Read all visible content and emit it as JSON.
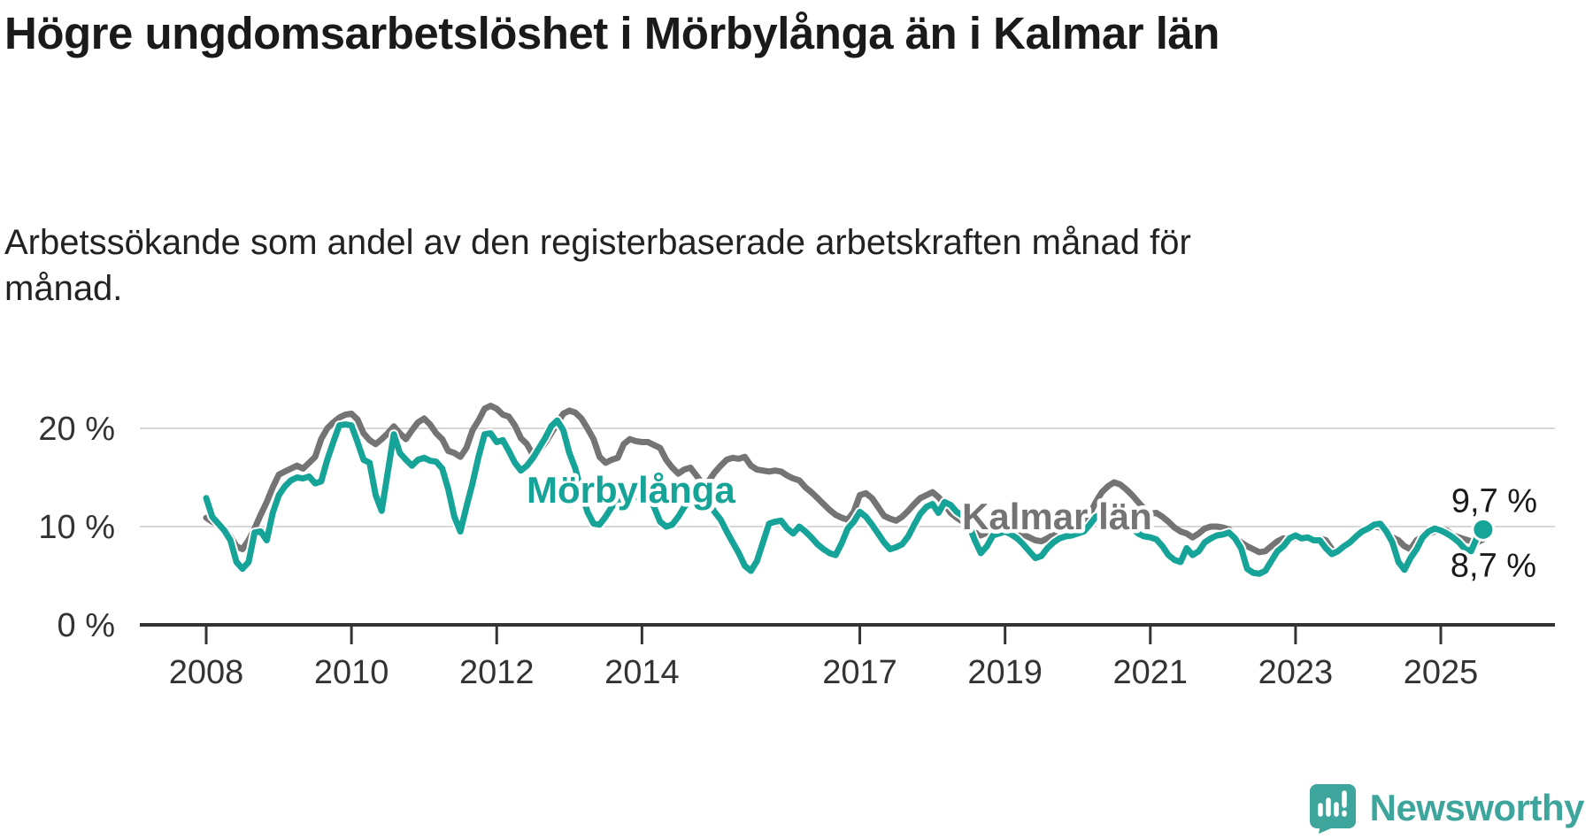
{
  "header": {
    "title": "Högre ungdomsarbetslöshet i Mörbylånga än i Kalmar län",
    "subtitle": "Arbetssökande som andel av den registerbaserade arbetskraften månad för månad."
  },
  "colors": {
    "morbylanga": "#16A398",
    "kalmar": "#747474",
    "axis": "#333333",
    "tick_text": "#333333",
    "grid": "#D8D8D8",
    "title_text": "#1A1A1A",
    "value_text": "#1A1A1A",
    "logo": "#3EA59D",
    "background": "#FFFFFF"
  },
  "chart_data": {
    "type": "line",
    "title": "Högre ungdomsarbetslöshet i Mörbylånga än i Kalmar län",
    "subtitle": "Arbetssökande som andel av den registerbaserade arbetskraften månad för månad.",
    "x_unit": "month",
    "x_start": "2008-01",
    "x_end": "2025-08",
    "grid": "horizontal",
    "legend": "inline-labels",
    "x_axis": {
      "ticks": [
        {
          "year": 2008,
          "label": "2008"
        },
        {
          "year": 2010,
          "label": "2010"
        },
        {
          "year": 2012,
          "label": "2012"
        },
        {
          "year": 2014,
          "label": "2014"
        },
        {
          "year": 2017,
          "label": "2017"
        },
        {
          "year": 2019,
          "label": "2019"
        },
        {
          "year": 2021,
          "label": "2021"
        },
        {
          "year": 2023,
          "label": "2023"
        },
        {
          "year": 2025,
          "label": "2025"
        }
      ]
    },
    "y_axis": {
      "unit": "%",
      "range": [
        0,
        23
      ],
      "ticks": [
        {
          "value": 20,
          "label": "20 %"
        },
        {
          "value": 10,
          "label": "10 %"
        },
        {
          "value": 0,
          "label": "0 %"
        }
      ]
    },
    "series": [
      {
        "id": "morbylanga",
        "name": "Mörbylånga",
        "color": "#16A398",
        "end_value": 9.7,
        "end_label": "9,7 %",
        "values": [
          12.9,
          11.0,
          10.3,
          9.6,
          8.6,
          6.4,
          5.7,
          6.4,
          9.4,
          9.5,
          8.6,
          11.4,
          13.2,
          14.1,
          14.7,
          15.0,
          14.9,
          15.1,
          14.4,
          14.6,
          16.8,
          18.6,
          20.3,
          20.4,
          20.3,
          18.6,
          16.8,
          16.5,
          13.2,
          11.6,
          15.5,
          19.4,
          17.5,
          16.8,
          16.2,
          16.8,
          17.0,
          16.7,
          16.6,
          15.9,
          13.8,
          11.0,
          9.5,
          12.0,
          14.4,
          17.1,
          19.4,
          19.5,
          18.6,
          18.8,
          17.7,
          16.5,
          15.7,
          16.2,
          17.0,
          18.0,
          19.0,
          20.2,
          20.8,
          19.8,
          17.5,
          15.9,
          13.5,
          11.5,
          10.3,
          10.2,
          11.0,
          12.0,
          12.6,
          12.8,
          12.9,
          13.0,
          13.3,
          13.5,
          12.0,
          10.5,
          10.0,
          10.2,
          11.0,
          12.0,
          12.8,
          13.3,
          13.6,
          12.5,
          11.5,
          10.7,
          9.5,
          8.4,
          7.3,
          6.0,
          5.5,
          6.5,
          8.4,
          10.3,
          10.5,
          10.6,
          9.8,
          9.3,
          10.0,
          9.5,
          8.9,
          8.2,
          7.7,
          7.3,
          7.1,
          8.3,
          9.8,
          10.5,
          11.5,
          11.0,
          10.2,
          9.3,
          8.4,
          7.7,
          7.9,
          8.2,
          9.0,
          10.2,
          11.3,
          12.0,
          12.3,
          11.4,
          12.5,
          12.2,
          11.5,
          11.1,
          10.2,
          8.6,
          7.3,
          8.0,
          9.1,
          9.3,
          9.5,
          9.2,
          8.8,
          8.2,
          7.5,
          6.8,
          7.0,
          7.8,
          8.4,
          8.8,
          9.0,
          9.1,
          9.3,
          9.5,
          10.2,
          11.0,
          11.3,
          11.0,
          10.8,
          10.5,
          10.2,
          9.8,
          9.3,
          9.0,
          8.9,
          8.7,
          8.0,
          7.1,
          6.6,
          6.4,
          7.8,
          7.1,
          7.5,
          8.4,
          8.8,
          9.1,
          9.2,
          9.4,
          8.8,
          7.8,
          5.7,
          5.3,
          5.2,
          5.5,
          6.5,
          7.5,
          8.0,
          8.8,
          9.1,
          8.8,
          8.9,
          8.6,
          8.6,
          7.8,
          7.2,
          7.5,
          8.0,
          8.4,
          9.0,
          9.5,
          9.8,
          10.2,
          10.3,
          9.5,
          8.4,
          6.4,
          5.6,
          6.8,
          7.7,
          8.9,
          9.5,
          9.8,
          9.6,
          9.3,
          8.9,
          8.4,
          7.7,
          7.5,
          8.9,
          9.7
        ]
      },
      {
        "id": "kalmar",
        "name": "Kalmar län",
        "color": "#747474",
        "end_value": 8.7,
        "end_label": "8,7 %",
        "values": [
          10.9,
          10.5,
          10.2,
          9.8,
          9.0,
          8.0,
          7.7,
          8.6,
          9.8,
          11.2,
          12.5,
          14.0,
          15.3,
          15.6,
          15.9,
          16.2,
          15.9,
          16.5,
          17.1,
          18.9,
          20.0,
          20.6,
          21.1,
          21.4,
          21.5,
          20.9,
          19.5,
          18.8,
          18.4,
          18.9,
          19.5,
          20.2,
          19.5,
          18.9,
          19.8,
          20.6,
          21.0,
          20.4,
          19.5,
          18.9,
          17.7,
          17.5,
          17.1,
          18.0,
          19.8,
          20.8,
          22.0,
          22.3,
          22.0,
          21.4,
          21.2,
          20.3,
          19.0,
          18.4,
          17.3,
          17.7,
          18.5,
          19.5,
          20.5,
          21.5,
          21.8,
          21.6,
          21.0,
          20.0,
          18.9,
          17.1,
          16.5,
          16.8,
          17.0,
          18.4,
          18.9,
          18.7,
          18.6,
          18.6,
          18.3,
          18.0,
          16.8,
          16.0,
          15.4,
          15.8,
          16.0,
          15.2,
          14.4,
          14.6,
          15.5,
          16.2,
          16.8,
          17.0,
          16.9,
          17.1,
          16.2,
          15.8,
          15.7,
          15.6,
          15.7,
          15.6,
          15.2,
          14.9,
          14.7,
          14.0,
          13.5,
          12.9,
          12.3,
          11.7,
          11.2,
          10.9,
          10.7,
          11.5,
          13.2,
          13.4,
          12.9,
          12.0,
          11.1,
          10.8,
          10.6,
          11.0,
          11.6,
          12.3,
          12.9,
          13.2,
          13.5,
          13.0,
          12.3,
          11.4,
          10.9,
          10.5,
          10.0,
          9.4,
          9.1,
          9.4,
          9.8,
          9.9,
          10.0,
          9.8,
          9.5,
          9.2,
          8.9,
          8.6,
          8.5,
          8.8,
          9.2,
          9.6,
          9.8,
          10.0,
          10.2,
          10.4,
          11.3,
          12.5,
          13.5,
          14.1,
          14.5,
          14.3,
          13.8,
          13.2,
          12.5,
          11.8,
          11.3,
          11.4,
          11.0,
          10.5,
          9.9,
          9.5,
          9.3,
          8.9,
          9.3,
          9.8,
          10.0,
          10.0,
          9.9,
          9.7,
          8.9,
          8.4,
          8.0,
          7.7,
          7.4,
          7.5,
          8.0,
          8.5,
          8.8,
          8.7,
          8.8,
          8.9,
          8.7,
          8.6,
          8.8,
          8.6,
          7.7,
          7.4,
          8.0,
          8.6,
          9.2,
          9.5,
          9.8,
          10.0,
          9.9,
          9.4,
          8.9,
          8.6,
          8.0,
          7.7,
          8.6,
          9.0,
          9.3,
          9.5,
          9.7,
          9.6,
          9.1,
          8.9,
          8.7,
          8.5,
          8.4,
          8.7
        ]
      }
    ]
  },
  "branding": {
    "name": "Newsworthy"
  }
}
